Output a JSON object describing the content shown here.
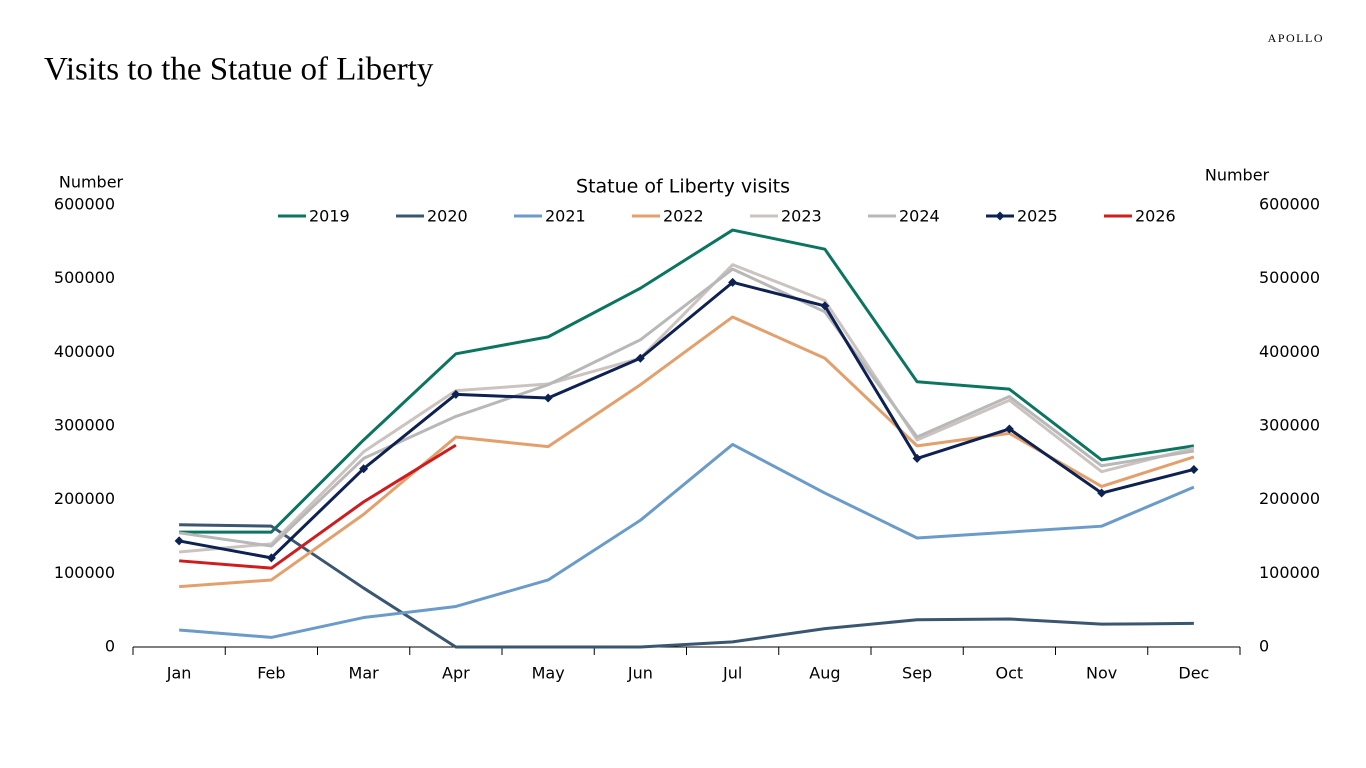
{
  "brand": "APOLLO",
  "title": "Visits to the Statue of Liberty",
  "chart_data": {
    "type": "line",
    "title": "Statue of Liberty visits",
    "ylabel": "Number",
    "y2label": "Number",
    "categories": [
      "Jan",
      "Feb",
      "Mar",
      "Apr",
      "May",
      "Jun",
      "Jul",
      "Aug",
      "Sep",
      "Oct",
      "Nov",
      "Dec"
    ],
    "ylim": [
      0,
      600000
    ],
    "yticks": [
      0,
      100000,
      200000,
      300000,
      400000,
      500000,
      600000
    ],
    "y2lim": [
      0,
      600000
    ],
    "y2ticks": [
      0,
      100000,
      200000,
      300000,
      400000,
      500000,
      600000
    ],
    "grid": false,
    "legend": "top",
    "series": [
      {
        "name": "2019",
        "color": "#0b7560",
        "values": [
          156000,
          156000,
          281000,
          398000,
          421000,
          487000,
          566000,
          540000,
          360000,
          350000,
          254000,
          273000
        ]
      },
      {
        "name": "2020",
        "color": "#3b5670",
        "values": [
          166000,
          164000,
          80000,
          0,
          0,
          0,
          7000,
          25000,
          37000,
          38000,
          31000,
          32000
        ]
      },
      {
        "name": "2021",
        "color": "#6b9bc8",
        "values": [
          23000,
          13000,
          40000,
          55000,
          91000,
          172000,
          275000,
          209000,
          148000,
          156000,
          164000,
          217000
        ]
      },
      {
        "name": "2022",
        "color": "#e3a06c",
        "values": [
          82000,
          91000,
          180000,
          285000,
          272000,
          356000,
          448000,
          392000,
          273000,
          290000,
          218000,
          258000
        ]
      },
      {
        "name": "2023",
        "color": "#cbc3c0",
        "values": [
          129000,
          140000,
          265000,
          348000,
          357000,
          392000,
          519000,
          470000,
          281000,
          335000,
          238000,
          270000
        ]
      },
      {
        "name": "2024",
        "color": "#b8b8b8",
        "values": [
          155000,
          137000,
          256000,
          313000,
          356000,
          417000,
          513000,
          455000,
          285000,
          340000,
          246000,
          266000
        ]
      },
      {
        "name": "2025",
        "color": "#0d2252",
        "marker": "diamond",
        "values": [
          144000,
          121000,
          242000,
          343000,
          338000,
          392000,
          495000,
          463000,
          256000,
          296000,
          209000,
          241000
        ]
      },
      {
        "name": "2026",
        "color": "#d01c1f",
        "values": [
          117000,
          107000,
          197000,
          274000,
          null,
          null,
          null,
          null,
          null,
          null,
          null,
          null
        ]
      }
    ]
  }
}
